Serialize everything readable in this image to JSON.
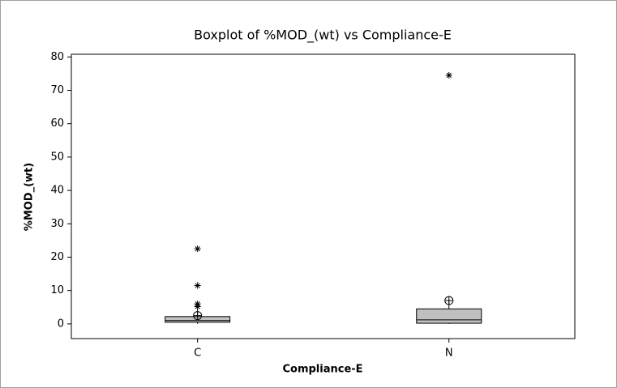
{
  "chart_data": {
    "type": "box",
    "title": "Boxplot of %MOD_(wt) vs Compliance-E",
    "x_label": "Compliance-E",
    "y_label": "%MOD_(wt)",
    "categories": [
      "C",
      "N"
    ],
    "whisker_low": [
      0,
      0
    ],
    "q1": [
      0.5,
      0.2
    ],
    "median": [
      1,
      1.2
    ],
    "q3": [
      2.2,
      4.5
    ],
    "whisker_high": [
      4.5,
      7
    ],
    "mean": [
      2.5,
      7
    ],
    "outliers": [
      [
        22.5,
        11.5,
        6,
        5.2
      ],
      [
        74.5
      ]
    ],
    "box_color": "#c0c0c0",
    "ylim": [
      -4.4,
      80.8
    ],
    "yticks": [
      0,
      10,
      20,
      30,
      40,
      50,
      60,
      70,
      80
    ]
  }
}
